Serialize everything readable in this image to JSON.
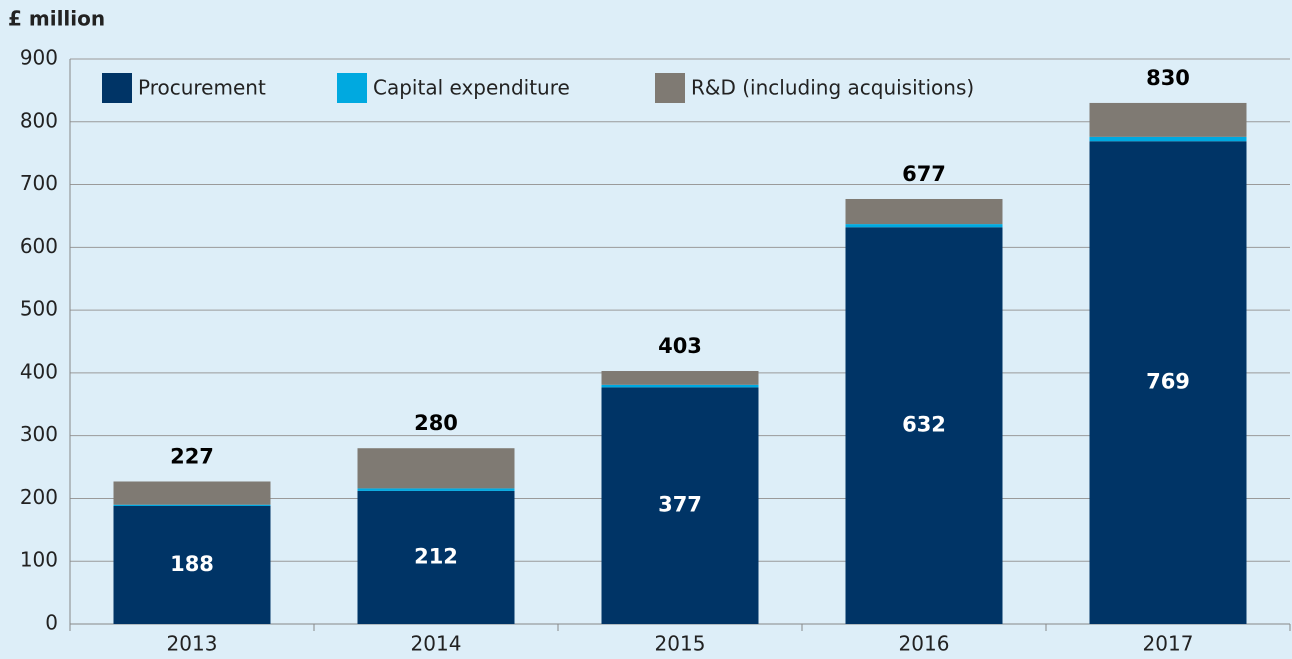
{
  "chart_data": {
    "type": "stacked_bar",
    "y_label": "£ million",
    "categories": [
      "2013",
      "2014",
      "2015",
      "2016",
      "2017"
    ],
    "series": [
      {
        "name": "Procurement",
        "color": "#003466",
        "values": [
          188,
          212,
          377,
          632,
          769
        ]
      },
      {
        "name": "Capital expenditure",
        "color": "#00a9e0",
        "values": [
          2,
          4,
          4,
          5,
          7
        ]
      },
      {
        "name": "R&D (including acquisitions)",
        "color": "#7f7a73",
        "values": [
          37,
          64,
          22,
          40,
          54
        ]
      }
    ],
    "totals": [
      227,
      280,
      403,
      677,
      830
    ],
    "ylim": [
      0,
      900
    ],
    "yticks": [
      0,
      100,
      200,
      300,
      400,
      500,
      600,
      700,
      800,
      900
    ],
    "grid": true,
    "legend": "top-left"
  }
}
